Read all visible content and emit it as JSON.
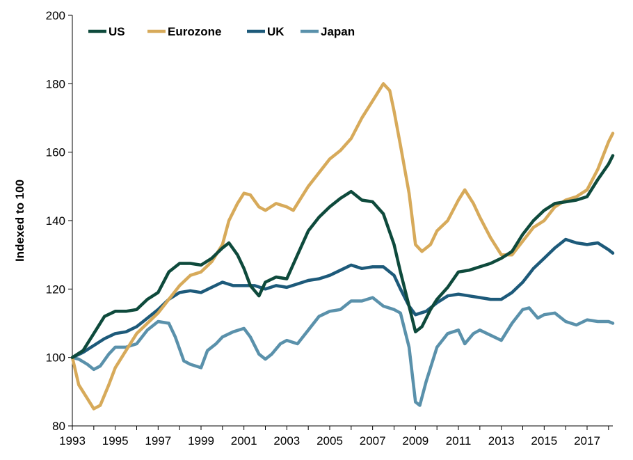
{
  "chart_data": {
    "type": "line",
    "title": "",
    "xlabel": "",
    "ylabel": "Indexed to 100",
    "ylim": [
      80,
      200
    ],
    "xlim": [
      1993,
      2018.2
    ],
    "y_ticks": [
      80,
      100,
      120,
      140,
      160,
      180,
      200
    ],
    "x_ticks": [
      1993,
      1995,
      1997,
      1999,
      2001,
      2003,
      2005,
      2007,
      2009,
      2011,
      2013,
      2015,
      2017
    ],
    "grid": false,
    "legend": "top-left",
    "series": [
      {
        "name": "US",
        "color": "#0e4a3c",
        "points": [
          [
            1993,
            100
          ],
          [
            1993.5,
            102
          ],
          [
            1994,
            107
          ],
          [
            1994.5,
            112
          ],
          [
            1995,
            113.5
          ],
          [
            1995.5,
            113.5
          ],
          [
            1996,
            114
          ],
          [
            1996.5,
            117
          ],
          [
            1997,
            119
          ],
          [
            1997.5,
            125
          ],
          [
            1998,
            127.5
          ],
          [
            1998.5,
            127.5
          ],
          [
            1999,
            127
          ],
          [
            1999.5,
            129
          ],
          [
            2000,
            132
          ],
          [
            2000.3,
            133.5
          ],
          [
            2000.7,
            130
          ],
          [
            2001,
            126
          ],
          [
            2001.3,
            121
          ],
          [
            2001.7,
            118
          ],
          [
            2002,
            122
          ],
          [
            2002.5,
            123.5
          ],
          [
            2003,
            123
          ],
          [
            2003.5,
            130
          ],
          [
            2004,
            137
          ],
          [
            2004.5,
            141
          ],
          [
            2005,
            144
          ],
          [
            2005.5,
            146.5
          ],
          [
            2006,
            148.5
          ],
          [
            2006.5,
            146
          ],
          [
            2007,
            145.5
          ],
          [
            2007.5,
            142
          ],
          [
            2008,
            133
          ],
          [
            2008.3,
            125
          ],
          [
            2008.7,
            115
          ],
          [
            2009,
            107.5
          ],
          [
            2009.3,
            109
          ],
          [
            2009.7,
            114
          ],
          [
            2010,
            117
          ],
          [
            2010.5,
            120.5
          ],
          [
            2011,
            125
          ],
          [
            2011.5,
            125.5
          ],
          [
            2012,
            126.5
          ],
          [
            2012.5,
            127.5
          ],
          [
            2013,
            129
          ],
          [
            2013.5,
            131
          ],
          [
            2014,
            136
          ],
          [
            2014.5,
            140
          ],
          [
            2015,
            143
          ],
          [
            2015.5,
            145
          ],
          [
            2016,
            145.5
          ],
          [
            2016.5,
            146
          ],
          [
            2017,
            147
          ],
          [
            2017.5,
            152
          ],
          [
            2018,
            156.5
          ],
          [
            2018.2,
            159
          ]
        ]
      },
      {
        "name": "Eurozone",
        "color": "#d7aa5a",
        "points": [
          [
            1993,
            100
          ],
          [
            1993.3,
            92
          ],
          [
            1993.7,
            88
          ],
          [
            1994,
            85
          ],
          [
            1994.3,
            86
          ],
          [
            1994.7,
            92
          ],
          [
            1995,
            97
          ],
          [
            1995.5,
            102
          ],
          [
            1996,
            107
          ],
          [
            1996.5,
            110
          ],
          [
            1997,
            113
          ],
          [
            1997.5,
            117
          ],
          [
            1998,
            121
          ],
          [
            1998.5,
            124
          ],
          [
            1999,
            125
          ],
          [
            1999.5,
            128
          ],
          [
            2000,
            133
          ],
          [
            2000.3,
            140
          ],
          [
            2000.7,
            145
          ],
          [
            2001,
            148
          ],
          [
            2001.3,
            147.5
          ],
          [
            2001.7,
            144
          ],
          [
            2002,
            143
          ],
          [
            2002.5,
            145
          ],
          [
            2003,
            144
          ],
          [
            2003.3,
            143
          ],
          [
            2003.7,
            147
          ],
          [
            2004,
            150
          ],
          [
            2004.5,
            154
          ],
          [
            2005,
            158
          ],
          [
            2005.5,
            160.5
          ],
          [
            2006,
            164
          ],
          [
            2006.5,
            170
          ],
          [
            2007,
            175
          ],
          [
            2007.5,
            180
          ],
          [
            2007.8,
            178
          ],
          [
            2008,
            172
          ],
          [
            2008.3,
            162
          ],
          [
            2008.7,
            148
          ],
          [
            2009,
            133
          ],
          [
            2009.3,
            131
          ],
          [
            2009.7,
            133
          ],
          [
            2010,
            137
          ],
          [
            2010.5,
            140
          ],
          [
            2011,
            146
          ],
          [
            2011.3,
            149
          ],
          [
            2011.7,
            145
          ],
          [
            2012,
            141
          ],
          [
            2012.5,
            135
          ],
          [
            2013,
            130
          ],
          [
            2013.5,
            130
          ],
          [
            2014,
            134
          ],
          [
            2014.5,
            138
          ],
          [
            2015,
            140
          ],
          [
            2015.5,
            144
          ],
          [
            2016,
            146
          ],
          [
            2016.5,
            147
          ],
          [
            2017,
            149
          ],
          [
            2017.5,
            155
          ],
          [
            2018,
            163
          ],
          [
            2018.2,
            165.5
          ]
        ]
      },
      {
        "name": "UK",
        "color": "#1d5a7a",
        "points": [
          [
            1993,
            100
          ],
          [
            1993.5,
            101.5
          ],
          [
            1994,
            103.5
          ],
          [
            1994.5,
            105.5
          ],
          [
            1995,
            107
          ],
          [
            1995.5,
            107.5
          ],
          [
            1996,
            109
          ],
          [
            1996.5,
            111.5
          ],
          [
            1997,
            114
          ],
          [
            1997.5,
            117
          ],
          [
            1998,
            119
          ],
          [
            1998.5,
            119.5
          ],
          [
            1999,
            119
          ],
          [
            1999.5,
            120.5
          ],
          [
            2000,
            122
          ],
          [
            2000.5,
            121
          ],
          [
            2001,
            121
          ],
          [
            2001.5,
            121
          ],
          [
            2002,
            120
          ],
          [
            2002.5,
            121
          ],
          [
            2003,
            120.5
          ],
          [
            2003.5,
            121.5
          ],
          [
            2004,
            122.5
          ],
          [
            2004.5,
            123
          ],
          [
            2005,
            124
          ],
          [
            2005.5,
            125.5
          ],
          [
            2006,
            127
          ],
          [
            2006.5,
            126
          ],
          [
            2007,
            126.5
          ],
          [
            2007.5,
            126.5
          ],
          [
            2008,
            124
          ],
          [
            2008.3,
            120
          ],
          [
            2008.7,
            115
          ],
          [
            2009,
            112.5
          ],
          [
            2009.5,
            113.5
          ],
          [
            2010,
            116
          ],
          [
            2010.5,
            118
          ],
          [
            2011,
            118.5
          ],
          [
            2011.5,
            118
          ],
          [
            2012,
            117.5
          ],
          [
            2012.5,
            117
          ],
          [
            2013,
            117
          ],
          [
            2013.5,
            119
          ],
          [
            2014,
            122
          ],
          [
            2014.5,
            126
          ],
          [
            2015,
            129
          ],
          [
            2015.5,
            132
          ],
          [
            2016,
            134.5
          ],
          [
            2016.5,
            133.5
          ],
          [
            2017,
            133
          ],
          [
            2017.5,
            133.5
          ],
          [
            2018,
            131.5
          ],
          [
            2018.2,
            130.5
          ]
        ]
      },
      {
        "name": "Japan",
        "color": "#5a91ab",
        "points": [
          [
            1993,
            100
          ],
          [
            1993.3,
            99.5
          ],
          [
            1993.7,
            98
          ],
          [
            1994,
            96.5
          ],
          [
            1994.3,
            97.5
          ],
          [
            1994.7,
            101
          ],
          [
            1995,
            103
          ],
          [
            1995.5,
            103
          ],
          [
            1996,
            104
          ],
          [
            1996.5,
            108
          ],
          [
            1997,
            110.5
          ],
          [
            1997.5,
            110
          ],
          [
            1997.8,
            106
          ],
          [
            1998.2,
            99
          ],
          [
            1998.5,
            98
          ],
          [
            1999,
            97
          ],
          [
            1999.3,
            102
          ],
          [
            1999.7,
            104
          ],
          [
            2000,
            106
          ],
          [
            2000.5,
            107.5
          ],
          [
            2001,
            108.5
          ],
          [
            2001.3,
            106
          ],
          [
            2001.7,
            101
          ],
          [
            2002,
            99.5
          ],
          [
            2002.3,
            101
          ],
          [
            2002.7,
            104
          ],
          [
            2003,
            105
          ],
          [
            2003.5,
            104
          ],
          [
            2004,
            108
          ],
          [
            2004.5,
            112
          ],
          [
            2005,
            113.5
          ],
          [
            2005.5,
            114
          ],
          [
            2006,
            116.5
          ],
          [
            2006.5,
            116.5
          ],
          [
            2007,
            117.5
          ],
          [
            2007.5,
            115
          ],
          [
            2008,
            114
          ],
          [
            2008.3,
            113
          ],
          [
            2008.7,
            103
          ],
          [
            2009,
            87
          ],
          [
            2009.2,
            86
          ],
          [
            2009.5,
            93
          ],
          [
            2010,
            103
          ],
          [
            2010.5,
            107
          ],
          [
            2011,
            108
          ],
          [
            2011.3,
            104
          ],
          [
            2011.7,
            107
          ],
          [
            2012,
            108
          ],
          [
            2012.5,
            106.5
          ],
          [
            2013,
            105
          ],
          [
            2013.5,
            110
          ],
          [
            2014,
            114
          ],
          [
            2014.3,
            114.5
          ],
          [
            2014.7,
            111.5
          ],
          [
            2015,
            112.5
          ],
          [
            2015.5,
            113
          ],
          [
            2016,
            110.5
          ],
          [
            2016.5,
            109.5
          ],
          [
            2017,
            111
          ],
          [
            2017.5,
            110.5
          ],
          [
            2018,
            110.5
          ],
          [
            2018.2,
            110
          ]
        ]
      }
    ]
  }
}
